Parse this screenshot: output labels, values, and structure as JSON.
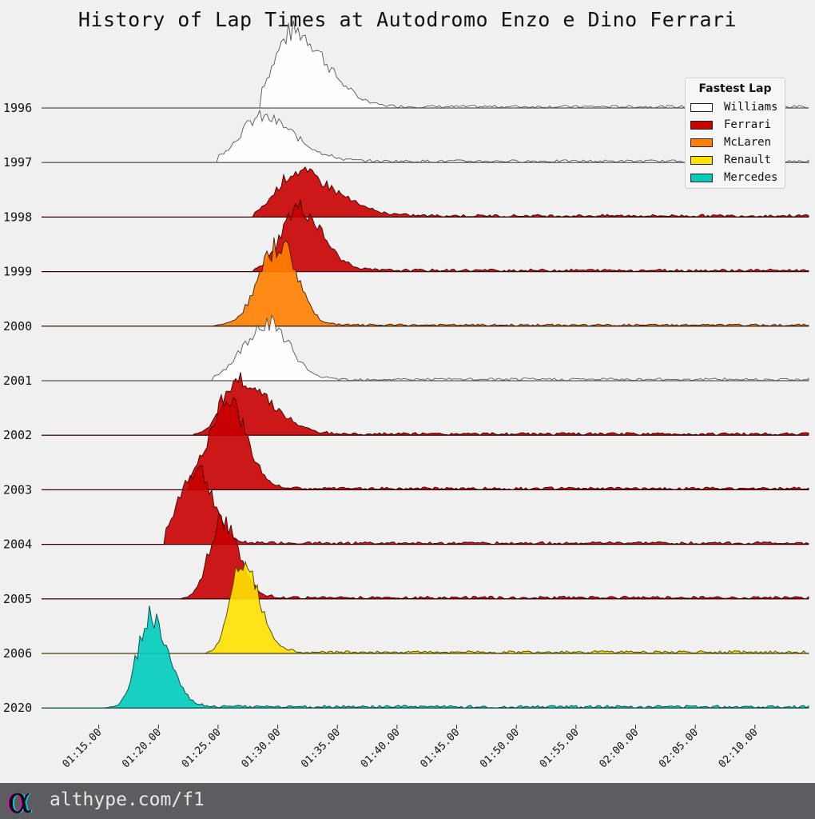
{
  "chart_data": {
    "type": "area",
    "title": "History of Lap Times at Autodromo Enzo e Dino Ferrari",
    "x_ticks": [
      "01:15.00",
      "01:20.00",
      "01:25.00",
      "01:30.00",
      "01:35.00",
      "01:40.00",
      "01:45.00",
      "01:50.00",
      "01:55.00",
      "02:00.00",
      "02:05.00",
      "02:10.00"
    ],
    "x_tick_seconds": [
      75,
      80,
      85,
      90,
      95,
      100,
      105,
      110,
      115,
      120,
      125,
      130
    ],
    "xlim_seconds": [
      70.2,
      134.5
    ],
    "legend": {
      "title": "Fastest Lap",
      "position": "top-right",
      "entries": [
        {
          "label": "Williams",
          "color": "#ffffff"
        },
        {
          "label": "Ferrari",
          "color": "#c80000"
        },
        {
          "label": "McLaren",
          "color": "#ff7f00"
        },
        {
          "label": "Renault",
          "color": "#ffe100"
        },
        {
          "label": "Mercedes",
          "color": "#00ccbb"
        }
      ]
    },
    "series": [
      {
        "name": "1996",
        "team": "Williams",
        "color": "#ffffff",
        "line": "#555555",
        "peak_time": 91.3,
        "rise": 1.6,
        "fall": 2.7,
        "height": 1.45,
        "min": 88.6,
        "tail": 0.05
      },
      {
        "name": "1997",
        "team": "Williams",
        "color": "#ffffff",
        "line": "#555555",
        "peak_time": 88.6,
        "rise": 1.8,
        "fall": 2.8,
        "height": 0.85,
        "min": 85.0,
        "tail": 0.05
      },
      {
        "name": "1998",
        "team": "Ferrari",
        "color": "#c80000",
        "line": "#3a0000",
        "peak_time": 91.5,
        "rise": 1.6,
        "fall": 3.2,
        "height": 0.85,
        "min": 88.0,
        "tail": 0.05
      },
      {
        "name": "1999",
        "team": "Ferrari",
        "color": "#c80000",
        "line": "#3a0000",
        "peak_time": 91.7,
        "rise": 1.4,
        "fall": 2.0,
        "height": 1.2,
        "min": 88.0,
        "tail": 0.05
      },
      {
        "name": "2000",
        "team": "McLaren",
        "color": "#ff7f00",
        "line": "#3a1a00",
        "peak_time": 90.2,
        "rise": 1.7,
        "fall": 1.5,
        "height": 1.55,
        "min": 84.5,
        "tail": 0.04
      },
      {
        "name": "2001",
        "team": "Williams",
        "color": "#ffffff",
        "line": "#555555",
        "peak_time": 89.2,
        "rise": 2.0,
        "fall": 1.8,
        "height": 1.1,
        "min": 84.5,
        "tail": 0.05
      },
      {
        "name": "2002",
        "team": "Ferrari",
        "color": "#c80000",
        "line": "#3a0000",
        "peak_time": 86.8,
        "rise": 1.3,
        "fall": 2.6,
        "height": 1.05,
        "min": 83.0,
        "tail": 0.05
      },
      {
        "name": "2003",
        "team": "Ferrari",
        "color": "#c80000",
        "line": "#3a0000",
        "peak_time": 85.8,
        "rise": 1.6,
        "fall": 1.6,
        "height": 1.65,
        "min": 82.5,
        "tail": 0.05
      },
      {
        "name": "2004",
        "team": "Ferrari",
        "color": "#c80000",
        "line": "#3a0000",
        "peak_time": 83.2,
        "rise": 1.5,
        "fall": 1.4,
        "height": 1.4,
        "min": 80.5,
        "tail": 0.05
      },
      {
        "name": "2005",
        "team": "Ferrari",
        "color": "#c80000",
        "line": "#3a0000",
        "peak_time": 85.2,
        "rise": 1.0,
        "fall": 1.5,
        "height": 1.45,
        "min": 82.0,
        "tail": 0.05
      },
      {
        "name": "2006",
        "team": "Renault",
        "color": "#ffe100",
        "line": "#4a4000",
        "peak_time": 86.9,
        "rise": 0.9,
        "fall": 1.5,
        "height": 1.8,
        "min": 84.0,
        "tail": 0.05
      },
      {
        "name": "2020",
        "team": "Mercedes",
        "color": "#00ccbb",
        "line": "#004a44",
        "peak_time": 79.2,
        "rise": 1.0,
        "fall": 1.6,
        "height": 1.7,
        "min": 75.5,
        "tail": 0.05
      }
    ]
  },
  "footer": {
    "text": "althype.com/f1"
  }
}
